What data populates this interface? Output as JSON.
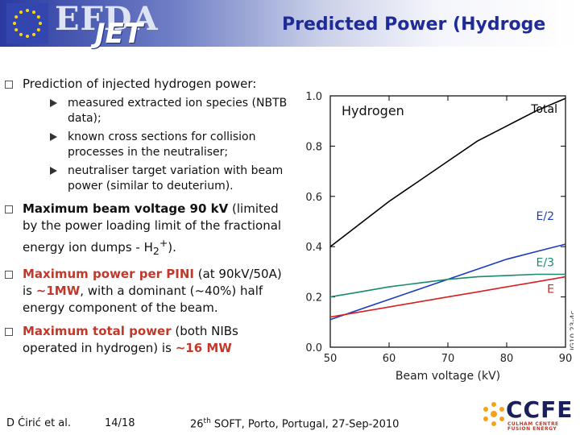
{
  "header": {
    "org": "EFDA",
    "brand": "JET",
    "title": "Predicted Power (Hydroge"
  },
  "bullets": {
    "b1": "Prediction of injected hydrogen power:",
    "b1_subs": [
      "measured extracted ion species (NBTB data);",
      "known cross sections for collision processes in the neutraliser;",
      "neutraliser target variation with beam power (similar to deuterium)."
    ],
    "b2_bold": "Maximum beam voltage 90 kV",
    "b2_rest": " (limited by the power loading limit of the fractional energy ion dumps - H",
    "b2_sub": "2",
    "b2_sup": "+",
    "b2_end": ").",
    "b3_bold": "Maximum power per PINI",
    "b3_mid": " (at 90kV/50A) is ",
    "b3_red": "~1MW",
    "b3_rest": ", with a dominant (~40%) half energy component of the beam.",
    "b4_bold": "Maximum total power",
    "b4_mid": " (both NIBs operated in hydrogen) is ",
    "b4_red": "~16 MW"
  },
  "footer": {
    "author": "D Ćirić et al.",
    "page": "14/18",
    "conf_num": "26",
    "conf_sup": "th",
    "conf_rest": " SOFT, Porto, Portugal, 27-Sep-2010"
  },
  "logo": {
    "name": "CCFE",
    "sub": "CULHAM CENTRE FUSION ENERGY"
  },
  "chart_data": {
    "type": "line",
    "title": "Hydrogen",
    "xlabel": "Beam voltage (kV)",
    "ylabel": "",
    "xlim": [
      50,
      90
    ],
    "ylim": [
      0.0,
      1.0
    ],
    "xticks": [
      "50",
      "60",
      "70",
      "80",
      "90"
    ],
    "yticks": [
      "0.0",
      "0.2",
      "0.4",
      "0.6",
      "0.8",
      "1.0"
    ],
    "side_label": "JG10.23-4c",
    "series": [
      {
        "name": "Total",
        "color": "#000000",
        "x": [
          50,
          55,
          60,
          65,
          70,
          75,
          80,
          85,
          90
        ],
        "y": [
          0.4,
          0.49,
          0.58,
          0.66,
          0.74,
          0.82,
          0.88,
          0.94,
          0.99
        ]
      },
      {
        "name": "E/2",
        "color": "#1a3bbf",
        "x": [
          50,
          55,
          60,
          65,
          70,
          75,
          80,
          85,
          90
        ],
        "y": [
          0.11,
          0.15,
          0.19,
          0.23,
          0.27,
          0.31,
          0.35,
          0.38,
          0.41
        ]
      },
      {
        "name": "E/3",
        "color": "#1a8a6e",
        "x": [
          50,
          55,
          60,
          65,
          70,
          75,
          80,
          85,
          90
        ],
        "y": [
          0.2,
          0.22,
          0.24,
          0.255,
          0.27,
          0.28,
          0.285,
          0.29,
          0.29
        ]
      },
      {
        "name": "E",
        "color": "#d62020",
        "x": [
          50,
          55,
          60,
          65,
          70,
          75,
          80,
          85,
          90
        ],
        "y": [
          0.12,
          0.14,
          0.16,
          0.18,
          0.2,
          0.22,
          0.24,
          0.26,
          0.28
        ]
      }
    ]
  }
}
